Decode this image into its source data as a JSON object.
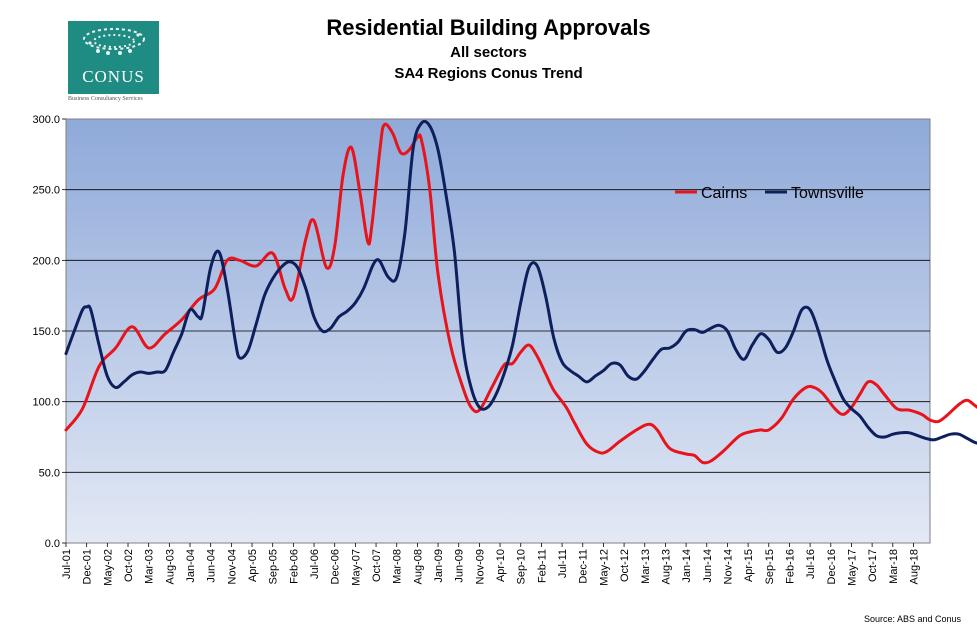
{
  "branding": {
    "logo_text": "CONUS",
    "logo_subtext": "Business Consultancy Services"
  },
  "source": "Source: ABS and Conus",
  "colors": {
    "cairns": "#e8141c",
    "townsville": "#0d1f5c",
    "bg_top": "#8fa9d9",
    "bg_bottom": "#e3e9f5"
  },
  "chart_data": {
    "type": "line",
    "title": "Residential Building Approvals",
    "subtitle": "All sectors",
    "subtitle2": "SA4 Regions Conus Trend",
    "xlabel": "",
    "ylabel": "",
    "ylim": [
      0,
      300
    ],
    "yticks": [
      "0.0",
      "50.0",
      "100.0",
      "150.0",
      "200.0",
      "250.0",
      "300.0"
    ],
    "x_start": "Jul-01",
    "x_step_months": 5,
    "x_labels": [
      "Jul-01",
      "Dec-01",
      "May-02",
      "Oct-02",
      "Mar-03",
      "Aug-03",
      "Jan-04",
      "Jun-04",
      "Nov-04",
      "Apr-05",
      "Sep-05",
      "Feb-06",
      "Jul-06",
      "Dec-06",
      "May-07",
      "Oct-07",
      "Mar-08",
      "Aug-08",
      "Jan-09",
      "Jun-09",
      "Nov-09",
      "Apr-10",
      "Sep-10",
      "Feb-11",
      "Jul-11",
      "Dec-11",
      "May-12",
      "Oct-12",
      "Mar-13",
      "Aug-13",
      "Jan-14",
      "Jun-14",
      "Nov-14",
      "Apr-15",
      "Sep-15",
      "Feb-16",
      "Jul-16",
      "Dec-16",
      "May-17",
      "Oct-17",
      "Mar-18",
      "Aug-18"
    ],
    "n_points": 210,
    "legend_position": "top-right",
    "series": [
      {
        "name": "Cairns",
        "points": [
          [
            0,
            80
          ],
          [
            4,
            95
          ],
          [
            8,
            125
          ],
          [
            12,
            138
          ],
          [
            16,
            153
          ],
          [
            20,
            138
          ],
          [
            24,
            148
          ],
          [
            28,
            158
          ],
          [
            32,
            172
          ],
          [
            36,
            180
          ],
          [
            39,
            200
          ],
          [
            42,
            200
          ],
          [
            46,
            196
          ],
          [
            50,
            205
          ],
          [
            53,
            180
          ],
          [
            55,
            174
          ],
          [
            58,
            215
          ],
          [
            60,
            228
          ],
          [
            63,
            195
          ],
          [
            65,
            210
          ],
          [
            67,
            260
          ],
          [
            69,
            280
          ],
          [
            71,
            250
          ],
          [
            73,
            213
          ],
          [
            74,
            225
          ],
          [
            76,
            280
          ],
          [
            77,
            296
          ],
          [
            79,
            290
          ],
          [
            81,
            276
          ],
          [
            83,
            278
          ],
          [
            85,
            287
          ],
          [
            86,
            285
          ],
          [
            88,
            250
          ],
          [
            90,
            190
          ],
          [
            93,
            140
          ],
          [
            96,
            110
          ],
          [
            98,
            96
          ],
          [
            100,
            94
          ],
          [
            103,
            110
          ],
          [
            106,
            126
          ],
          [
            108,
            127
          ],
          [
            110,
            135
          ],
          [
            112,
            140
          ],
          [
            114,
            132
          ],
          [
            116,
            120
          ],
          [
            118,
            108
          ],
          [
            121,
            96
          ],
          [
            123,
            85
          ],
          [
            126,
            70
          ],
          [
            129,
            64
          ],
          [
            131,
            65
          ],
          [
            134,
            72
          ],
          [
            138,
            80
          ],
          [
            141,
            84
          ],
          [
            143,
            80
          ],
          [
            146,
            67
          ],
          [
            150,
            63
          ],
          [
            152,
            62
          ],
          [
            154,
            57
          ],
          [
            156,
            58
          ],
          [
            159,
            65
          ],
          [
            163,
            76
          ],
          [
            166,
            79
          ],
          [
            168,
            80
          ],
          [
            170,
            80
          ],
          [
            173,
            88
          ],
          [
            176,
            102
          ],
          [
            179,
            110
          ],
          [
            181,
            110
          ],
          [
            183,
            106
          ],
          [
            186,
            95
          ],
          [
            188,
            91
          ],
          [
            190,
            96
          ],
          [
            192,
            105
          ],
          [
            194,
            114
          ],
          [
            196,
            112
          ],
          [
            198,
            105
          ],
          [
            201,
            95
          ],
          [
            204,
            94
          ],
          [
            207,
            91
          ],
          [
            209,
            87
          ],
          [
            211,
            86
          ],
          [
            213,
            90
          ],
          [
            216,
            98
          ],
          [
            218,
            101
          ],
          [
            220,
            97
          ],
          [
            222,
            94
          ],
          [
            224,
            100
          ],
          [
            226,
            113
          ],
          [
            227,
            125
          ],
          [
            229,
            134
          ],
          [
            230,
            132
          ],
          [
            232,
            117
          ],
          [
            233,
            100
          ],
          [
            235,
            90
          ],
          [
            237,
            88
          ],
          [
            240,
            87
          ]
        ]
      },
      {
        "name": "Townsville",
        "points": [
          [
            0,
            134
          ],
          [
            2,
            150
          ],
          [
            4,
            165
          ],
          [
            5,
            167
          ],
          [
            6,
            165
          ],
          [
            8,
            140
          ],
          [
            10,
            118
          ],
          [
            12,
            110
          ],
          [
            14,
            114
          ],
          [
            16,
            119
          ],
          [
            18,
            121
          ],
          [
            20,
            120
          ],
          [
            22,
            121
          ],
          [
            24,
            122
          ],
          [
            26,
            135
          ],
          [
            28,
            148
          ],
          [
            30,
            165
          ],
          [
            32,
            160
          ],
          [
            33,
            162
          ],
          [
            35,
            195
          ],
          [
            37,
            206
          ],
          [
            39,
            180
          ],
          [
            41,
            142
          ],
          [
            42,
            131
          ],
          [
            44,
            136
          ],
          [
            46,
            155
          ],
          [
            48,
            175
          ],
          [
            50,
            187
          ],
          [
            52,
            195
          ],
          [
            54,
            199
          ],
          [
            56,
            195
          ],
          [
            58,
            180
          ],
          [
            60,
            160
          ],
          [
            62,
            150
          ],
          [
            64,
            152
          ],
          [
            66,
            160
          ],
          [
            68,
            164
          ],
          [
            70,
            170
          ],
          [
            72,
            180
          ],
          [
            74,
            195
          ],
          [
            75,
            200
          ],
          [
            76,
            199
          ],
          [
            78,
            188
          ],
          [
            80,
            188
          ],
          [
            82,
            220
          ],
          [
            84,
            280
          ],
          [
            86,
            297
          ],
          [
            88,
            295
          ],
          [
            90,
            278
          ],
          [
            92,
            245
          ],
          [
            94,
            205
          ],
          [
            96,
            140
          ],
          [
            98,
            110
          ],
          [
            100,
            96
          ],
          [
            102,
            96
          ],
          [
            104,
            105
          ],
          [
            106,
            120
          ],
          [
            108,
            140
          ],
          [
            110,
            170
          ],
          [
            112,
            195
          ],
          [
            114,
            196
          ],
          [
            116,
            175
          ],
          [
            118,
            145
          ],
          [
            120,
            128
          ],
          [
            122,
            122
          ],
          [
            124,
            118
          ],
          [
            126,
            114
          ],
          [
            128,
            118
          ],
          [
            130,
            122
          ],
          [
            132,
            127
          ],
          [
            134,
            126
          ],
          [
            136,
            118
          ],
          [
            138,
            116
          ],
          [
            140,
            122
          ],
          [
            142,
            130
          ],
          [
            144,
            137
          ],
          [
            146,
            138
          ],
          [
            148,
            142
          ],
          [
            150,
            150
          ],
          [
            152,
            151
          ],
          [
            154,
            149
          ],
          [
            156,
            152
          ],
          [
            158,
            154
          ],
          [
            160,
            150
          ],
          [
            162,
            137
          ],
          [
            164,
            130
          ],
          [
            166,
            140
          ],
          [
            168,
            148
          ],
          [
            170,
            144
          ],
          [
            172,
            135
          ],
          [
            174,
            138
          ],
          [
            176,
            150
          ],
          [
            178,
            165
          ],
          [
            180,
            165
          ],
          [
            182,
            150
          ],
          [
            184,
            130
          ],
          [
            186,
            115
          ],
          [
            188,
            102
          ],
          [
            190,
            95
          ],
          [
            192,
            90
          ],
          [
            194,
            82
          ],
          [
            196,
            76
          ],
          [
            198,
            75
          ],
          [
            200,
            77
          ],
          [
            202,
            78
          ],
          [
            204,
            78
          ],
          [
            206,
            76
          ],
          [
            208,
            74
          ],
          [
            210,
            73
          ],
          [
            212,
            75
          ],
          [
            214,
            77
          ],
          [
            216,
            77
          ],
          [
            218,
            74
          ],
          [
            220,
            71
          ],
          [
            222,
            70
          ],
          [
            224,
            68
          ],
          [
            226,
            62
          ],
          [
            228,
            53
          ],
          [
            230,
            48
          ],
          [
            232,
            44
          ],
          [
            234,
            40
          ],
          [
            236,
            37
          ]
        ]
      }
    ]
  }
}
